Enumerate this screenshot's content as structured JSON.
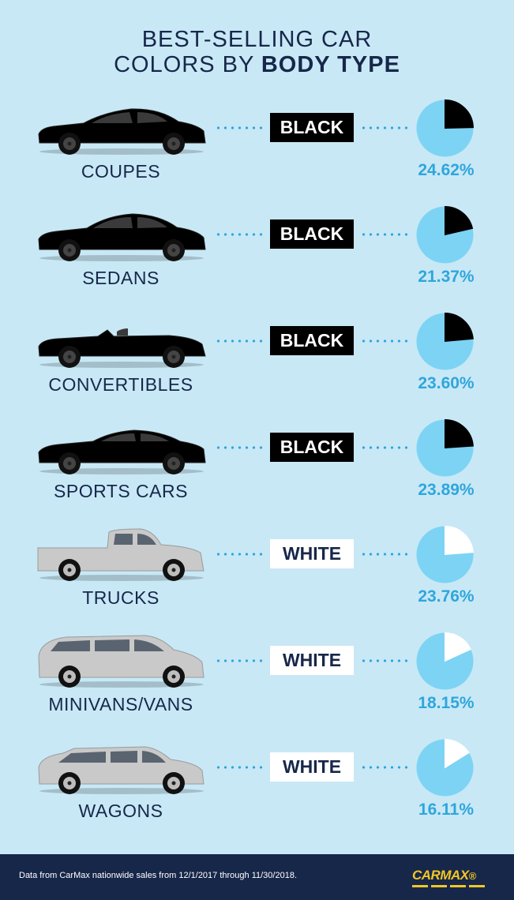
{
  "title": {
    "line1": "BEST-SELLING CAR",
    "line2_prefix": "COLORS BY ",
    "line2_bold": "BODY TYPE"
  },
  "chart_data": {
    "type": "pie",
    "title": "BEST-SELLING CAR COLORS BY BODY TYPE",
    "rows": [
      {
        "body_type": "COUPES",
        "color": "BLACK",
        "percent": 24.62,
        "label": "24.62%",
        "car": "coupe-icon"
      },
      {
        "body_type": "SEDANS",
        "color": "BLACK",
        "percent": 21.37,
        "label": "21.37%",
        "car": "sedan-icon"
      },
      {
        "body_type": "CONVERTIBLES",
        "color": "BLACK",
        "percent": 23.6,
        "label": "23.60%",
        "car": "convertible-icon"
      },
      {
        "body_type": "SPORTS CARS",
        "color": "BLACK",
        "percent": 23.89,
        "label": "23.89%",
        "car": "sports-car-icon"
      },
      {
        "body_type": "TRUCKS",
        "color": "WHITE",
        "percent": 23.76,
        "label": "23.76%",
        "car": "truck-icon"
      },
      {
        "body_type": "MINIVANS/VANS",
        "color": "WHITE",
        "percent": 18.15,
        "label": "18.15%",
        "car": "minivan-icon"
      },
      {
        "body_type": "WAGONS",
        "color": "WHITE",
        "percent": 16.11,
        "label": "16.11%",
        "car": "wagon-icon"
      }
    ]
  },
  "colors": {
    "background": "#c8e8f6",
    "navy": "#17274a",
    "accent": "#2fa6dc",
    "pie_base": "#7dd3f4",
    "black": "#000000",
    "white": "#ffffff",
    "silver": "#c9c9c9",
    "logo": "#f3c623"
  },
  "footer": {
    "note": "Data from CarMax nationwide sales from 12/1/2017 through 11/30/2018.",
    "logo_main": "CARMAX",
    "logo_mark": "®"
  }
}
